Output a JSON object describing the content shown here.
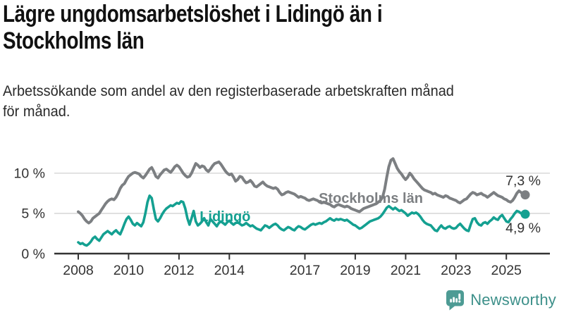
{
  "header": {
    "title": "Lägre ungdomsarbetslöshet i Lidingö än i Stockholms län",
    "title_lines": [
      "Lägre ungdomsarbetslöshet i Lidingö än i",
      "Stockholms län"
    ],
    "subtitle": "Arbetssökande som andel av den registerbaserade arbetskraften månad för månad.",
    "subtitle_lines": [
      "Arbetssökande som andel av den registerbaserade arbetskraften månad",
      "för månad."
    ]
  },
  "chart_data": {
    "type": "line",
    "title": "Lägre ungdomsarbetslöshet i Lidingö än i Stockholms län",
    "subtitle": "Arbetssökande som andel av den registerbaserade arbetskraften månad för månad.",
    "y_unit": "%",
    "x_unit": "year, monthly points",
    "ylim": [
      0,
      12.5
    ],
    "grid": "horizontal",
    "colors": {
      "axis": "#333333",
      "gridline": "#dcdcdc",
      "tick_label": "#333333",
      "value_label": "#333333"
    },
    "yticks": [
      {
        "value": 0,
        "label": "0 %"
      },
      {
        "value": 5,
        "label": "5 %"
      },
      {
        "value": 10,
        "label": "10 %"
      }
    ],
    "xticks": [
      {
        "value": 2008,
        "label": "2008"
      },
      {
        "value": 2010,
        "label": "2010"
      },
      {
        "value": 2012,
        "label": "2012"
      },
      {
        "value": 2014,
        "label": "2014"
      },
      {
        "value": 2017,
        "label": "2017"
      },
      {
        "value": 2019,
        "label": "2019"
      },
      {
        "value": 2021,
        "label": "2021"
      },
      {
        "value": 2023,
        "label": "2023"
      },
      {
        "value": 2025,
        "label": "2025"
      }
    ],
    "series": [
      {
        "id": "stockholms-lan",
        "name": "Stockholms län",
        "color": "#7c7f82",
        "stroke_width": 4,
        "end_value": 7.3,
        "end_label": "7,3 %",
        "end_label_side": "above",
        "label_at": {
          "year": 2017.55,
          "pct": 6.3
        },
        "x_start": 2008.0,
        "x_step": 0.08333,
        "values": [
          5.2,
          5.0,
          4.7,
          4.3,
          4.0,
          3.8,
          4.0,
          4.4,
          4.6,
          4.8,
          5.0,
          5.4,
          5.8,
          6.2,
          6.5,
          6.7,
          6.8,
          6.7,
          7.0,
          7.5,
          8.1,
          8.5,
          8.7,
          9.2,
          9.6,
          9.8,
          10.0,
          10.1,
          10.0,
          9.9,
          9.6,
          9.4,
          9.7,
          10.1,
          10.5,
          10.7,
          10.2,
          9.6,
          9.4,
          9.8,
          10.1,
          10.4,
          10.5,
          10.3,
          10.1,
          10.4,
          10.8,
          11.0,
          10.8,
          10.4,
          10.0,
          9.7,
          9.5,
          9.6,
          10.0,
          10.6,
          11.2,
          11.0,
          10.7,
          10.9,
          10.8,
          10.4,
          10.2,
          10.5,
          10.9,
          11.2,
          11.3,
          11.4,
          11.1,
          10.7,
          10.3,
          10.0,
          9.8,
          9.9,
          9.5,
          9.0,
          9.2,
          9.6,
          9.5,
          9.1,
          8.8,
          8.9,
          9.1,
          8.8,
          8.4,
          8.3,
          8.5,
          8.7,
          8.9,
          8.6,
          8.4,
          8.3,
          8.2,
          8.1,
          8.2,
          8.0,
          7.6,
          7.3,
          7.4,
          7.6,
          7.7,
          7.6,
          7.5,
          7.4,
          7.2,
          7.0,
          7.1,
          7.0,
          6.9,
          6.7,
          6.6,
          6.7,
          6.8,
          6.7,
          6.6,
          6.4,
          6.3,
          6.4,
          6.3,
          6.2,
          6.1,
          5.9,
          5.8,
          6.0,
          6.1,
          6.0,
          5.9,
          5.8,
          5.9,
          5.8,
          5.6,
          5.5,
          5.4,
          5.3,
          5.2,
          5.4,
          5.6,
          5.7,
          5.8,
          5.9,
          6.0,
          6.1,
          6.2,
          6.4,
          6.6,
          7.0,
          8.0,
          9.5,
          10.8,
          11.6,
          11.8,
          11.2,
          10.6,
          10.2,
          9.9,
          9.5,
          9.2,
          9.5,
          10.0,
          9.7,
          9.3,
          9.0,
          8.7,
          8.4,
          8.1,
          7.9,
          7.8,
          7.7,
          7.6,
          7.4,
          7.5,
          7.3,
          7.2,
          7.1,
          7.0,
          7.2,
          7.1,
          6.9,
          6.8,
          6.7,
          6.6,
          6.4,
          6.3,
          6.5,
          6.7,
          6.8,
          7.1,
          7.4,
          7.6,
          7.5,
          7.3,
          7.4,
          7.5,
          7.3,
          7.2,
          7.0,
          7.2,
          7.4,
          7.6,
          7.4,
          7.2,
          7.1,
          7.0,
          6.8,
          6.7,
          6.5,
          6.4,
          6.6,
          7.0,
          7.5,
          7.8,
          7.6,
          7.4,
          7.3
        ]
      },
      {
        "id": "lidingo",
        "name": "Lidingö",
        "color": "#14a091",
        "stroke_width": 3.6,
        "end_value": 4.9,
        "end_label": "4,9 %",
        "end_label_side": "below",
        "label_at": {
          "year": 2012.82,
          "pct": 4.03
        },
        "x_start": 2008.0,
        "x_step": 0.08333,
        "values": [
          1.4,
          1.2,
          1.3,
          1.1,
          1.0,
          1.2,
          1.5,
          1.9,
          2.1,
          1.8,
          1.6,
          2.0,
          2.4,
          2.6,
          2.8,
          2.6,
          2.4,
          2.7,
          2.9,
          2.6,
          2.4,
          3.0,
          3.7,
          4.3,
          4.6,
          4.2,
          3.7,
          3.5,
          3.8,
          3.6,
          3.4,
          3.9,
          5.0,
          6.4,
          7.2,
          6.9,
          5.5,
          4.3,
          4.0,
          4.4,
          4.9,
          5.3,
          5.6,
          5.8,
          6.0,
          5.9,
          6.1,
          6.3,
          6.2,
          6.5,
          6.4,
          5.6,
          4.4,
          3.6,
          4.4,
          5.3,
          4.0,
          3.5,
          3.7,
          4.0,
          4.4,
          3.9,
          3.5,
          4.3,
          4.0,
          3.7,
          3.4,
          3.8,
          4.0,
          3.8,
          3.6,
          3.9,
          4.1,
          3.8,
          3.6,
          3.8,
          3.9,
          3.7,
          3.5,
          3.6,
          3.8,
          3.6,
          3.4,
          3.5,
          3.3,
          3.1,
          3.0,
          2.9,
          3.2,
          3.5,
          3.4,
          3.2,
          3.4,
          3.6,
          3.7,
          3.5,
          3.2,
          3.0,
          2.9,
          3.1,
          3.3,
          3.2,
          3.0,
          2.9,
          3.2,
          3.4,
          3.3,
          3.1,
          3.0,
          3.2,
          3.4,
          3.6,
          3.7,
          3.6,
          3.7,
          3.8,
          3.7,
          3.9,
          4.0,
          4.2,
          4.4,
          4.2,
          4.1,
          4.3,
          4.2,
          4.3,
          4.2,
          4.1,
          4.2,
          4.0,
          3.8,
          3.6,
          3.5,
          3.3,
          3.1,
          3.2,
          3.4,
          3.6,
          3.8,
          4.0,
          4.1,
          4.2,
          4.3,
          4.4,
          4.6,
          4.9,
          5.3,
          5.7,
          5.9,
          5.7,
          5.5,
          5.7,
          5.5,
          5.3,
          5.4,
          5.2,
          5.0,
          4.7,
          4.9,
          5.1,
          5.0,
          5.1,
          4.9,
          4.6,
          4.2,
          3.9,
          3.7,
          3.6,
          3.5,
          3.2,
          2.9,
          2.8,
          3.2,
          3.5,
          3.2,
          3.1,
          3.3,
          3.4,
          3.2,
          3.1,
          3.2,
          3.5,
          3.7,
          3.4,
          3.1,
          2.9,
          2.8,
          3.6,
          4.3,
          4.4,
          3.9,
          3.6,
          3.5,
          3.8,
          3.9,
          3.7,
          4.0,
          4.2,
          4.5,
          4.3,
          4.2,
          4.6,
          4.8,
          4.4,
          4.0,
          3.9,
          4.3,
          4.6,
          5.0,
          5.3,
          5.2,
          5.0,
          4.9,
          4.9
        ]
      }
    ]
  },
  "branding": {
    "logo_text": "Newsworthy",
    "logo_text_color": "#3d908a",
    "icon": "newsworthy-chart-bubble-icon",
    "icon_color": "#4d9b94"
  }
}
